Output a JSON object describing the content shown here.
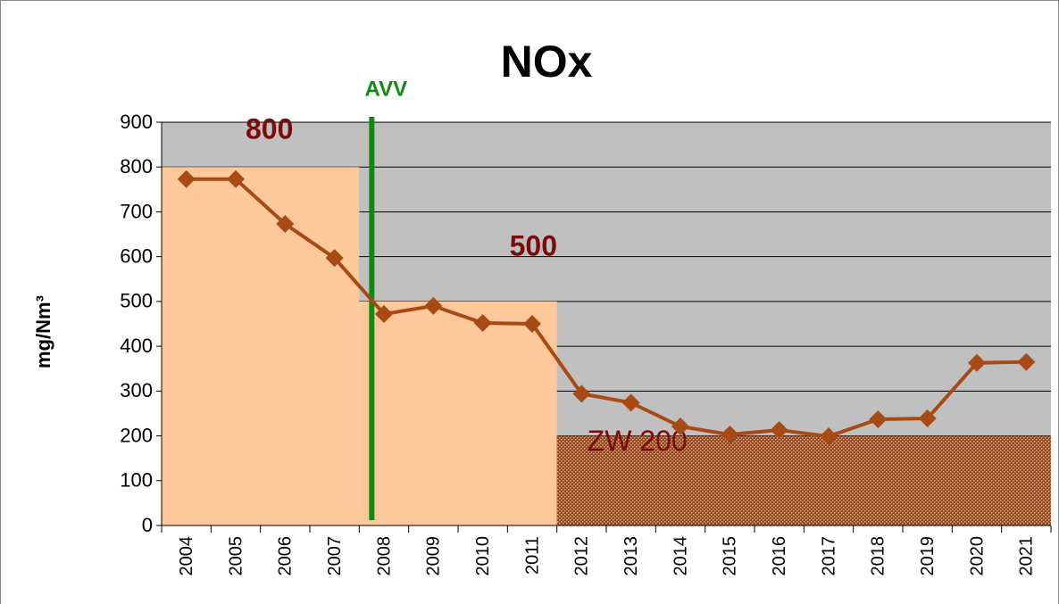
{
  "chart_data": {
    "type": "line",
    "title": "NOx",
    "ylabel": "mg/Nm³",
    "categories": [
      "2004",
      "2005",
      "2006",
      "2007",
      "2008",
      "2009",
      "2010",
      "2011",
      "2012",
      "2013",
      "2014",
      "2015",
      "2016",
      "2017",
      "2018",
      "2019",
      "2020",
      "2021"
    ],
    "series": [
      {
        "name": "NOx",
        "color": "#a84a14",
        "values": [
          773,
          773,
          673,
          597,
          472,
          490,
          452,
          450,
          294,
          274,
          221,
          203,
          213,
          199,
          237,
          239,
          363,
          365
        ]
      }
    ],
    "ylim": [
      0,
      900
    ],
    "yticks": [
      0,
      100,
      200,
      300,
      400,
      500,
      600,
      700,
      800,
      900
    ],
    "grid": true,
    "limits": [
      {
        "label": "800",
        "value": 800,
        "from": "2004",
        "color": "#fdc99a"
      },
      {
        "label": "500",
        "value": 500,
        "from": "2008",
        "color": "#fdc99a"
      },
      {
        "label": "ZW 200",
        "value": 200,
        "from": "2012",
        "color": "#8a4a2a"
      }
    ],
    "marker": {
      "label": "AVV",
      "at": "2008",
      "color": "#108a10"
    }
  }
}
